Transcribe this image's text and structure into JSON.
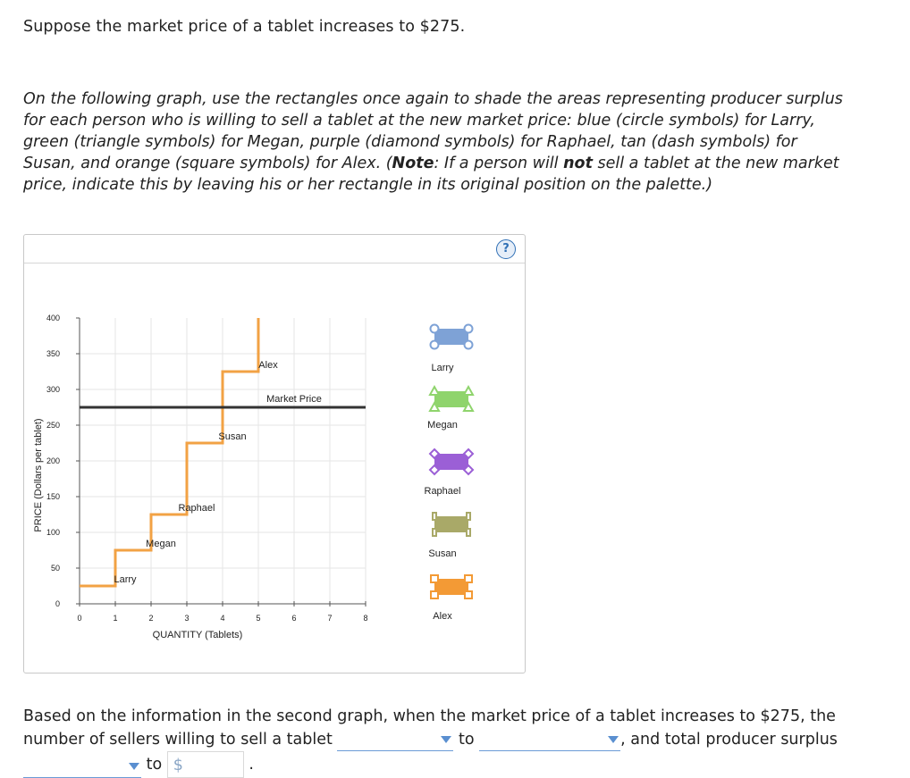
{
  "intro": "Suppose the market price of a tablet increases to $275.",
  "instructions": {
    "p1": "On the following graph, use the rectangles once again to shade the areas representing producer surplus for each person who is willing to sell a tablet at the new market price: blue (circle symbols) for Larry, green (triangle symbols) for Megan, purple (diamond symbols) for Raphael, tan (dash symbols) for Susan, and orange (square symbols) for Alex. (",
    "note_label": "Note",
    "p2": ": If a person will ",
    "not_word": "not",
    "p3": " sell a tablet at the new market price, indicate this by leaving his or her rectangle in its original position on the palette.)"
  },
  "help_icon": "?",
  "chart_data": {
    "type": "line",
    "xlabel": "QUANTITY (Tablets)",
    "ylabel": "PRICE (Dollars per tablet)",
    "xlim": [
      0,
      8
    ],
    "ylim": [
      0,
      400
    ],
    "x_ticks": [
      "0",
      "1",
      "2",
      "3",
      "4",
      "5",
      "6",
      "7",
      "8"
    ],
    "y_ticks": [
      "0",
      "50",
      "100",
      "150",
      "200",
      "250",
      "300",
      "350",
      "400"
    ],
    "supply_steps": [
      {
        "name": "Larry",
        "x0": 0,
        "x1": 1,
        "price": 25
      },
      {
        "name": "Megan",
        "x0": 1,
        "x1": 2,
        "price": 75
      },
      {
        "name": "Raphael",
        "x0": 2,
        "x1": 3,
        "price": 125
      },
      {
        "name": "Susan",
        "x0": 3,
        "x1": 4,
        "price": 225
      },
      {
        "name": "Alex",
        "x0": 4,
        "x1": 5,
        "price": 325
      }
    ],
    "supply_top": 400,
    "market_price": {
      "label": "Market Price",
      "value": 275
    },
    "step_labels": [
      {
        "text": "Larry",
        "x": 1.25,
        "y": 35
      },
      {
        "text": "Megan",
        "x": 2.25,
        "y": 85
      },
      {
        "text": "Raphael",
        "x": 3.25,
        "y": 135
      },
      {
        "text": "Susan",
        "x": 4.25,
        "y": 235
      },
      {
        "text": "Alex",
        "x": 5.25,
        "y": 335
      }
    ],
    "palette": [
      {
        "name": "Larry",
        "color": "#7ea2d6",
        "symbol": "circle"
      },
      {
        "name": "Megan",
        "color": "#8fd46c",
        "symbol": "triangle"
      },
      {
        "name": "Raphael",
        "color": "#9b5fd6",
        "symbol": "diamond"
      },
      {
        "name": "Susan",
        "color": "#a9a968",
        "symbol": "dash"
      },
      {
        "name": "Alex",
        "color": "#f39a35",
        "symbol": "square"
      }
    ],
    "colors": {
      "supply": "#f2a244",
      "market": "#333333",
      "grid": "#e6e6e6"
    }
  },
  "question": {
    "line1": "Based on the information in the second graph, when the market price of a tablet increases to $275, the number of sellers willing to sell a tablet",
    "to1": "to",
    "tail1": ", and total producer surplus",
    "to2": "to",
    "dollar": "$",
    "end": "."
  }
}
